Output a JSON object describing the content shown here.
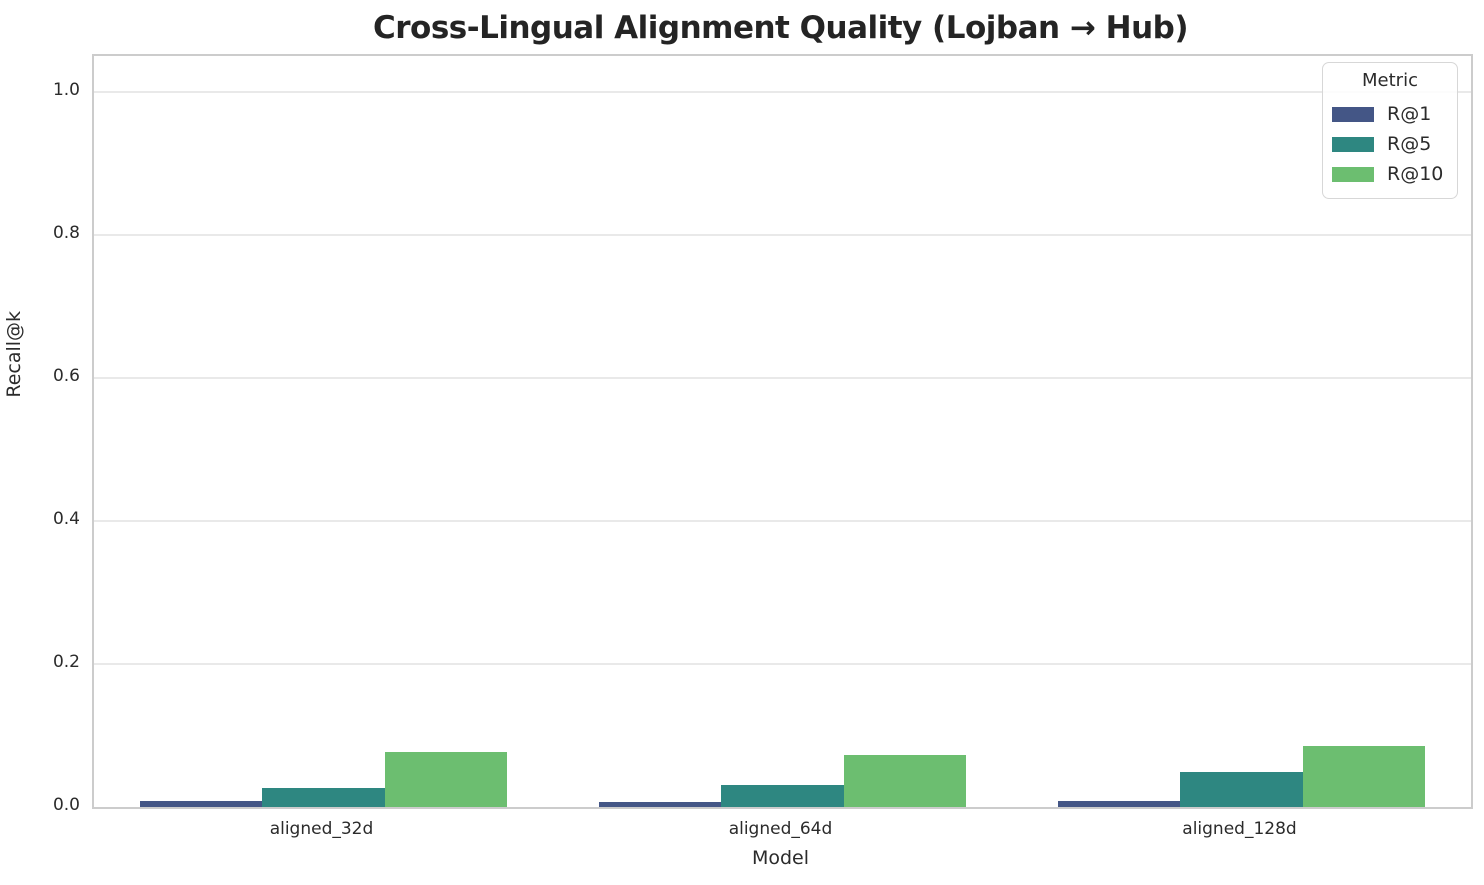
{
  "chart_data": {
    "type": "bar",
    "title": "Cross-Lingual Alignment Quality (Lojban → Hub)",
    "xlabel": "Model",
    "ylabel": "Recall@k",
    "legend_title": "Metric",
    "legend_position": "upper right",
    "grid": true,
    "categories": [
      "aligned_32d",
      "aligned_64d",
      "aligned_128d"
    ],
    "series": [
      {
        "name": "R@1",
        "color": "#445686",
        "values": [
          0.008,
          0.007,
          0.009
        ]
      },
      {
        "name": "R@5",
        "color": "#2e8781",
        "values": [
          0.027,
          0.031,
          0.049
        ]
      },
      {
        "name": "R@10",
        "color": "#6cbe70",
        "values": [
          0.077,
          0.073,
          0.085
        ]
      }
    ],
    "ylim": [
      0,
      1.05
    ],
    "yticks": [
      0.0,
      0.2,
      0.4,
      0.6,
      0.8,
      1.0
    ],
    "ytick_labels": [
      "0.0",
      "0.2",
      "0.4",
      "0.6",
      "0.8",
      "1.0"
    ]
  }
}
